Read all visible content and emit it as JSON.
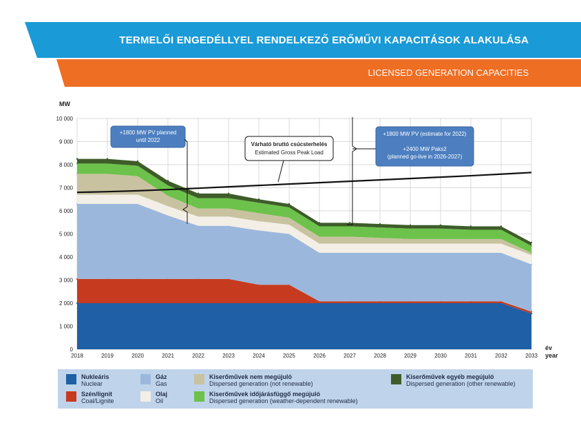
{
  "header": {
    "title_hu": "TERMELŐI ENGEDÉLLYEL RENDELKEZŐ ERŐMŰVI KAPACITÁSOK ALAKULÁSA",
    "title_en": "LICENSED GENERATION CAPACITIES",
    "colors": {
      "band_top": "#1a9ad6",
      "band_bottom": "#ee6e23"
    }
  },
  "chart_data": {
    "type": "area",
    "stacked": true,
    "ylabel": "MW",
    "xlabel_hu": "év",
    "xlabel_en": "year",
    "ylim": [
      0,
      10000
    ],
    "yticks": [
      0,
      1000,
      2000,
      3000,
      4000,
      5000,
      6000,
      7000,
      8000,
      9000,
      10000
    ],
    "ytick_labels": [
      "0",
      "1 000",
      "2 000",
      "3 000",
      "4 000",
      "5 000",
      "6 000",
      "7 000",
      "8 000",
      "9 000",
      "10 000"
    ],
    "x": [
      2018,
      2019,
      2020,
      2021,
      2022,
      2023,
      2024,
      2025,
      2026,
      2027,
      2028,
      2029,
      2030,
      2031,
      2032,
      2033
    ],
    "grid": true,
    "series": [
      {
        "name_hu": "Nukleáris",
        "name_en": "Nuclear",
        "color": "#1f5fa6",
        "values": [
          2000,
          2000,
          2000,
          2000,
          2000,
          2000,
          2000,
          2000,
          2000,
          2000,
          2000,
          2000,
          2000,
          2000,
          2000,
          1550
        ]
      },
      {
        "name_hu": "Szén/lignit",
        "name_en": "Coal/Lignite",
        "color": "#c63b20",
        "values": [
          1050,
          1050,
          1050,
          1050,
          1050,
          1050,
          800,
          800,
          80,
          80,
          80,
          80,
          80,
          80,
          80,
          80
        ]
      },
      {
        "name_hu": "Gáz",
        "name_en": "Gas",
        "color": "#9bb8dc",
        "values": [
          3250,
          3250,
          3250,
          2750,
          2300,
          2300,
          2350,
          2200,
          2100,
          2100,
          2100,
          2100,
          2100,
          2100,
          2100,
          2050
        ]
      },
      {
        "name_hu": "Olaj",
        "name_en": "Oil",
        "color": "#f3efe6",
        "values": [
          400,
          400,
          400,
          400,
          400,
          400,
          400,
          400,
          400,
          400,
          400,
          400,
          400,
          400,
          400,
          400
        ]
      },
      {
        "name_hu": "Kiserőművek nem megújuló",
        "name_en": "Dispersed generation (not renewable)",
        "color": "#c8c2a0",
        "values": [
          900,
          900,
          800,
          450,
          350,
          350,
          350,
          300,
          300,
          300,
          250,
          200,
          200,
          200,
          200,
          100
        ]
      },
      {
        "name_hu": "Kiserőművek időjárásfüggő megújuló",
        "name_en": "Dispersed generation (weather-dependent renewable)",
        "color": "#6cc24a",
        "values": [
          450,
          450,
          450,
          450,
          450,
          450,
          450,
          450,
          450,
          450,
          450,
          450,
          450,
          400,
          400,
          300
        ]
      },
      {
        "name_hu": "Kiserőművek egyéb megújuló",
        "name_en": "Dispersed generation (other renewable)",
        "color": "#3e5c2a",
        "values": [
          200,
          200,
          200,
          200,
          200,
          200,
          150,
          150,
          150,
          150,
          150,
          150,
          150,
          150,
          150,
          150
        ]
      }
    ],
    "line": {
      "name_hu": "Várható bruttó csúcsterhelés",
      "name_en": "Estimated Gross Peak Load",
      "color": "#111111",
      "values": [
        6800,
        6830,
        6870,
        6920,
        6980,
        7040,
        7100,
        7160,
        7220,
        7280,
        7340,
        7400,
        7460,
        7520,
        7590,
        7660
      ]
    },
    "annotations": [
      {
        "lines": [
          "+1800 MW PV planned",
          "until 2022"
        ],
        "color": "#4d7fc0"
      },
      {
        "lines": [
          "+1800 MW PV (estimate for 2022)",
          "",
          "+2400 MW Paks2",
          "(planned go-live in 2026-2027)"
        ],
        "color": "#4d7fc0"
      }
    ],
    "callout": {
      "lines": [
        "Várható bruttó csúcsterhelés",
        "Estimated Gross Peak Load"
      ]
    }
  },
  "legend": {
    "items": [
      {
        "hu": "Nukleáris",
        "en": "Nuclear",
        "color": "#1f5fa6"
      },
      {
        "hu": "Szén/lignit",
        "en": "Coal/Lignite",
        "color": "#c63b20"
      },
      {
        "hu": "Gáz",
        "en": "Gas",
        "color": "#9bb8dc"
      },
      {
        "hu": "Olaj",
        "en": "Oil",
        "color": "#f3efe6"
      },
      {
        "hu": "Kiserőművek nem megújuló",
        "en": "Dispersed generation (not renewable)",
        "color": "#c8c2a0"
      },
      {
        "hu": "Kiserőművek időjárásfüggő megújuló",
        "en": "Dispersed generation (weather-dependent renewable)",
        "color": "#6cc24a"
      },
      {
        "hu": "Kiserőművek egyéb megújuló",
        "en": "Dispersed generation (other renewable)",
        "color": "#3e5c2a"
      }
    ]
  }
}
